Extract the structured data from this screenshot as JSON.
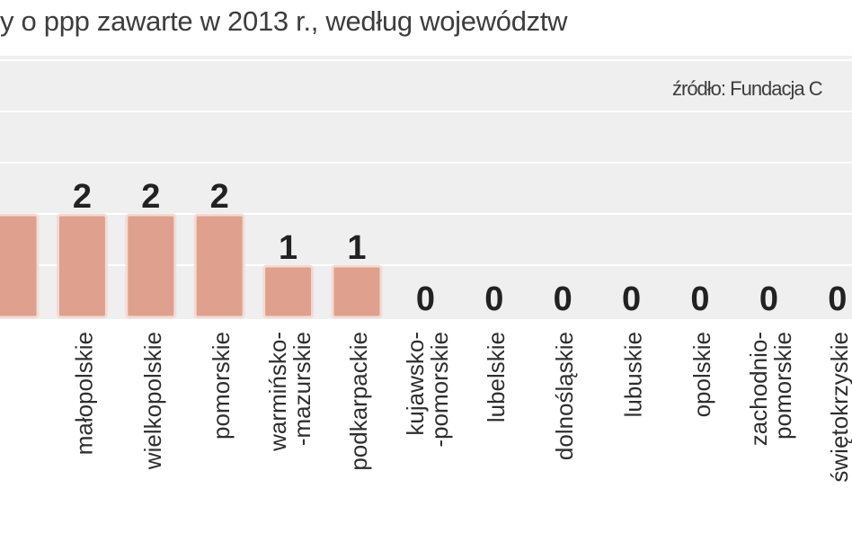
{
  "title": "y o ppp zawarte w 2013 r., według województw",
  "source": "źródło: Fundacja C",
  "colors": {
    "bar_fill": "#dfa08e",
    "bar_outline": "#f2dcd4",
    "plot_background": "#efefef",
    "gridline": "#ffffff",
    "text": "#222222"
  },
  "chart_data": {
    "type": "bar",
    "title": "y o ppp zawarte w 2013 r., według województw",
    "categories": [
      "",
      [
        "małopolskie"
      ],
      [
        "wielkopolskie"
      ],
      [
        "pomorskie"
      ],
      [
        "warmińsko-",
        "-mazurskie"
      ],
      [
        "podkarpackie"
      ],
      [
        "kujawsko-",
        "-pomorskie"
      ],
      [
        "lubelskie"
      ],
      [
        "dolnośląskie"
      ],
      [
        "lubuskie"
      ],
      [
        "opolskie"
      ],
      [
        "zachodnio-",
        "pomorskie"
      ],
      [
        "świętokrzyskie"
      ]
    ],
    "values": [
      2,
      2,
      2,
      2,
      1,
      1,
      0,
      0,
      0,
      0,
      0,
      0,
      0
    ],
    "data_labels": [
      "",
      "2",
      "2",
      "2",
      "1",
      "1",
      "0",
      "0",
      "0",
      "0",
      "0",
      "0",
      "0"
    ],
    "ylim": [
      0,
      4.7
    ],
    "grid": true,
    "legend": "none"
  }
}
